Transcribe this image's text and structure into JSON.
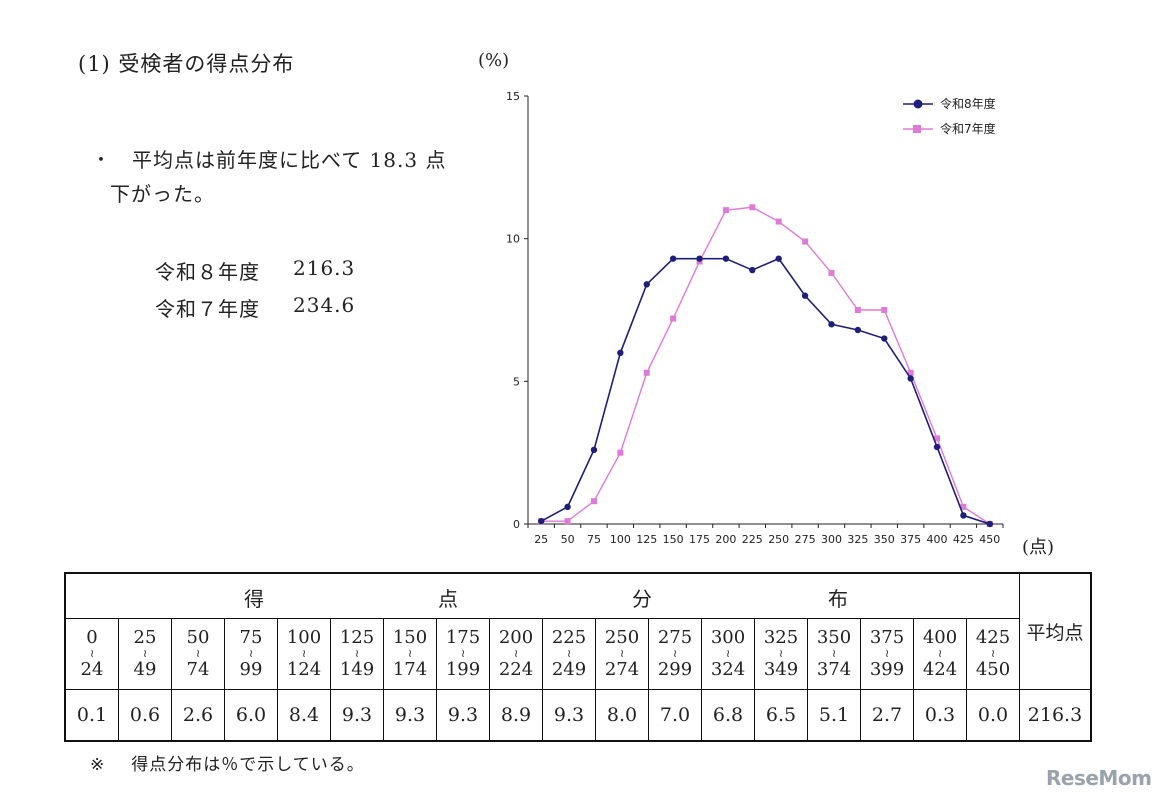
{
  "heading": "(1)  受検者の得点分布",
  "bullet": {
    "mark": "・",
    "line1": "平均点は前年度に比べて 18.3 点",
    "line2": "下がった。"
  },
  "averages": [
    {
      "label": "令和８年度",
      "value": "216.3"
    },
    {
      "label": "令和７年度",
      "value": "234.6"
    }
  ],
  "chart_unit_y": "(%)",
  "chart_unit_x": "(点)",
  "chart_data": {
    "type": "line",
    "x": [
      25,
      50,
      75,
      100,
      125,
      150,
      175,
      200,
      225,
      250,
      275,
      300,
      325,
      350,
      375,
      400,
      425,
      450
    ],
    "x_ticks": [
      "25",
      "50",
      "75",
      "100",
      "125",
      "150",
      "175",
      "200",
      "225",
      "250",
      "275",
      "300",
      "325",
      "350",
      "375",
      "400",
      "425",
      "450"
    ],
    "y_ticks": [
      "0",
      "5",
      "10",
      "15"
    ],
    "ylim": [
      0,
      15
    ],
    "legend": "top-right",
    "grid": false,
    "series": [
      {
        "name": "令和8年度",
        "color": "#1f1f7a",
        "marker": "circle",
        "values": [
          0.1,
          0.6,
          2.6,
          6.0,
          8.4,
          9.3,
          9.3,
          9.3,
          8.9,
          9.3,
          8.0,
          7.0,
          6.8,
          6.5,
          5.1,
          2.7,
          0.3,
          0.0
        ]
      },
      {
        "name": "令和7年度",
        "color": "#e07ad8",
        "marker": "square",
        "values": [
          0.1,
          0.1,
          0.8,
          2.5,
          5.3,
          7.2,
          9.2,
          11.0,
          11.1,
          10.6,
          9.9,
          8.8,
          7.5,
          7.5,
          5.3,
          3.0,
          0.6,
          0.0
        ]
      }
    ]
  },
  "table": {
    "title_chars": [
      "得",
      "点",
      "分",
      "布"
    ],
    "bins": [
      {
        "from": "0",
        "to": "24"
      },
      {
        "from": "25",
        "to": "49"
      },
      {
        "from": "50",
        "to": "74"
      },
      {
        "from": "75",
        "to": "99"
      },
      {
        "from": "100",
        "to": "124"
      },
      {
        "from": "125",
        "to": "149"
      },
      {
        "from": "150",
        "to": "174"
      },
      {
        "from": "175",
        "to": "199"
      },
      {
        "from": "200",
        "to": "224"
      },
      {
        "from": "225",
        "to": "249"
      },
      {
        "from": "250",
        "to": "274"
      },
      {
        "from": "275",
        "to": "299"
      },
      {
        "from": "300",
        "to": "324"
      },
      {
        "from": "325",
        "to": "349"
      },
      {
        "from": "350",
        "to": "374"
      },
      {
        "from": "375",
        "to": "399"
      },
      {
        "from": "400",
        "to": "424"
      },
      {
        "from": "425",
        "to": "450"
      }
    ],
    "tilde": "≀",
    "values": [
      "0.1",
      "0.6",
      "2.6",
      "6.0",
      "8.4",
      "9.3",
      "9.3",
      "9.3",
      "8.9",
      "9.3",
      "8.0",
      "7.0",
      "6.8",
      "6.5",
      "5.1",
      "2.7",
      "0.3",
      "0.0"
    ],
    "avg_header": "平均点",
    "avg_value": "216.3"
  },
  "note": {
    "mark": "※",
    "text": "得点分布は％で示している。"
  },
  "logo": "ReseMom"
}
